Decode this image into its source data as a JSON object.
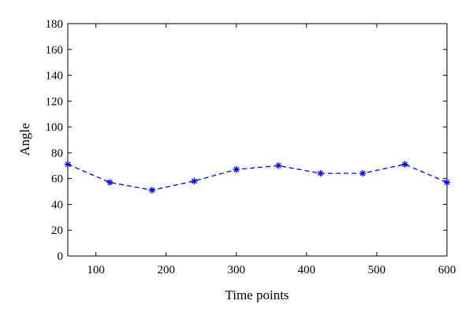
{
  "chart_data": {
    "type": "line",
    "title": "",
    "xlabel": "Time points",
    "ylabel": "Angle",
    "xlim": [
      60,
      600
    ],
    "ylim": [
      0,
      180
    ],
    "xticks": [
      100,
      200,
      300,
      400,
      500,
      600
    ],
    "yticks": [
      0,
      20,
      40,
      60,
      80,
      100,
      120,
      140,
      160,
      180
    ],
    "grid": false,
    "legend": "none",
    "series": [
      {
        "color": "#0000ff",
        "line_style": "dashed",
        "marker": "asterisk",
        "x": [
          60,
          120,
          180,
          240,
          300,
          360,
          420,
          480,
          540,
          600
        ],
        "y": [
          71,
          57,
          51,
          58,
          67,
          70,
          64,
          64,
          71,
          57
        ]
      }
    ]
  }
}
